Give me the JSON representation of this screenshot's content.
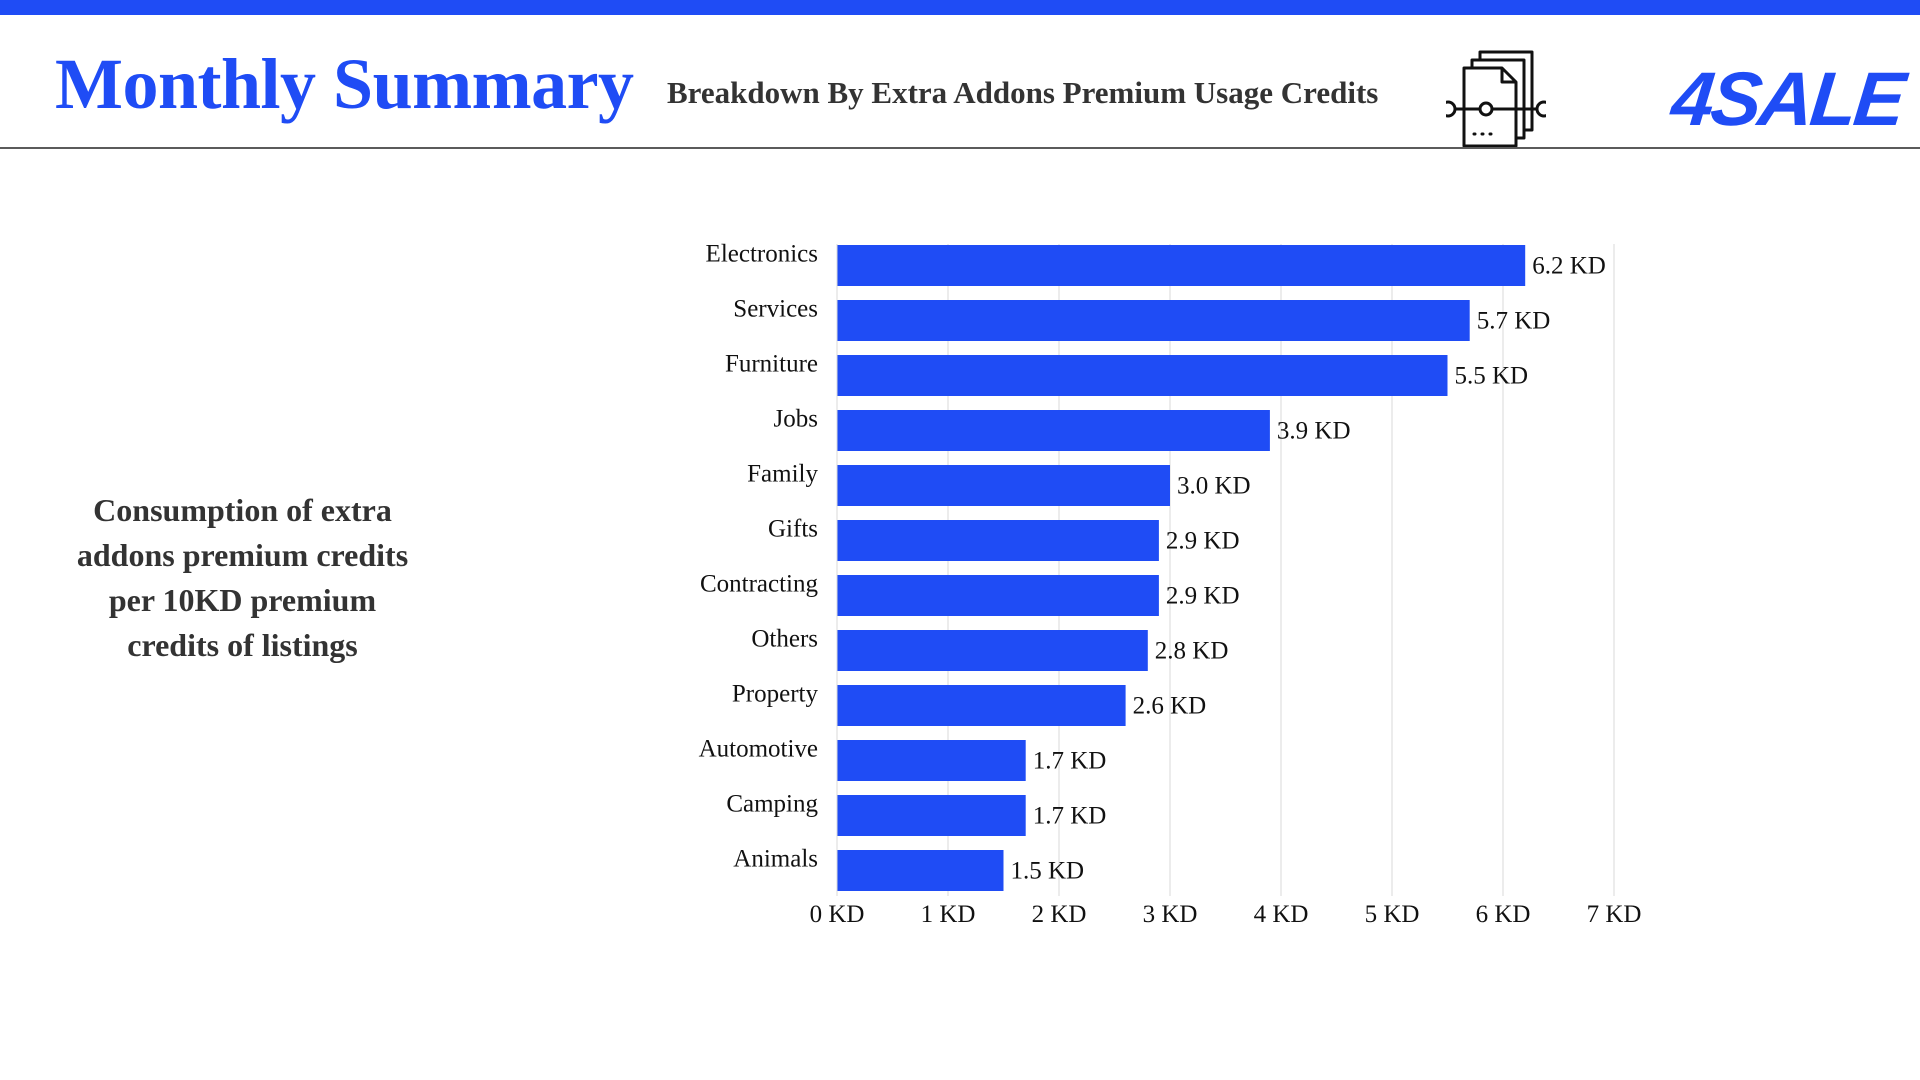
{
  "header": {
    "title": "Monthly Summary",
    "subtitle": "Breakdown By Extra Addons Premium Usage Credits",
    "logo_text": "4SALE",
    "document_icon": "documents-icon"
  },
  "side_note": "Consumption of extra addons premium credits per 10KD premium credits of listings",
  "colors": {
    "accent": "#1f4cf5",
    "bar": "#1f4cf5",
    "text": "#333333",
    "grid": "#d9d9d9"
  },
  "chart_data": {
    "type": "bar",
    "orientation": "horizontal",
    "categories": [
      "Electronics",
      "Services",
      "Furniture",
      "Jobs",
      "Family",
      "Gifts",
      "Contracting",
      "Others",
      "Property",
      "Automotive",
      "Camping",
      "Animals"
    ],
    "values": [
      6.2,
      5.7,
      5.5,
      3.9,
      3.0,
      2.9,
      2.9,
      2.8,
      2.6,
      1.7,
      1.7,
      1.5
    ],
    "value_labels": [
      "6.2 KD",
      "5.7 KD",
      "5.5 KD",
      "3.9 KD",
      "3.0 KD",
      "2.9 KD",
      "2.9 KD",
      "2.8 KD",
      "2.6 KD",
      "1.7 KD",
      "1.7 KD",
      "1.5 KD"
    ],
    "x_ticks": [
      "0 KD",
      "1 KD",
      "2 KD",
      "3 KD",
      "4 KD",
      "5 KD",
      "6 KD",
      "7 KD"
    ],
    "xlim": [
      0,
      7
    ],
    "grid": true,
    "legend": "none"
  }
}
